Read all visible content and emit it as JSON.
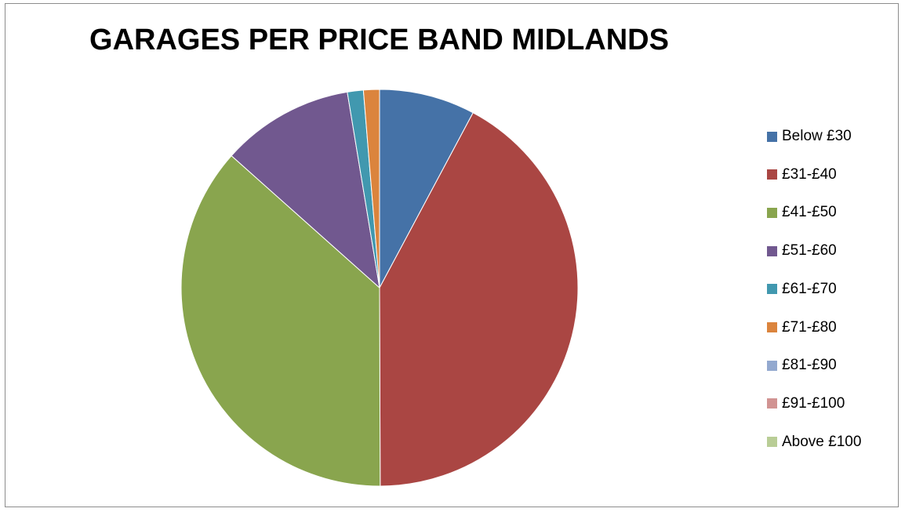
{
  "chart_data": {
    "type": "pie",
    "title": "GARAGES PER PRICE BAND MIDLANDS",
    "legend_position": "right",
    "categories": [
      "Below £30",
      "£31-£40",
      "£41-£50",
      "£51-£60",
      "£61-£70",
      "£71-£80",
      "£81-£90",
      "£91-£100",
      "Above £100"
    ],
    "values": [
      7.8,
      42.1,
      36.6,
      10.8,
      1.3,
      1.3,
      0,
      0,
      0
    ],
    "colors": [
      "#4572A7",
      "#AA4643",
      "#89A54E",
      "#71588F",
      "#4198AF",
      "#DB843D",
      "#93A9CF",
      "#D19392",
      "#B9CD96"
    ]
  }
}
